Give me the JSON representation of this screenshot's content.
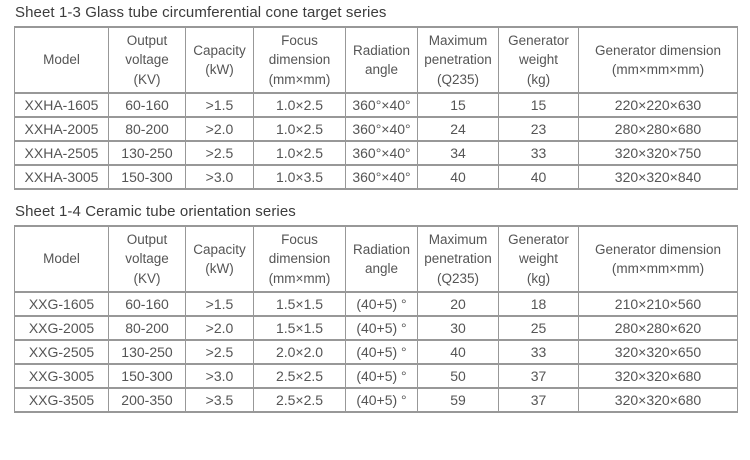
{
  "colors": {
    "border": "#989898",
    "text": "#555555",
    "title": "#3c3c3c",
    "background": "#ffffff"
  },
  "tables": [
    {
      "title": "Sheet 1-3 Glass tube circumferential cone target series",
      "column_headers": [
        [
          "Model"
        ],
        [
          "Output",
          "voltage",
          "(KV)"
        ],
        [
          "Capacity",
          "(kW)"
        ],
        [
          "Focus",
          "dimension",
          "(mm×mm)"
        ],
        [
          "Radiation",
          "angle"
        ],
        [
          "Maximum",
          "penetration",
          "(Q235)"
        ],
        [
          "Generator",
          "weight",
          "(kg)"
        ],
        [
          "Generator dimension",
          "(mm×mm×mm)"
        ]
      ],
      "rows": [
        [
          "XXHA-1605",
          "60-160",
          ">1.5",
          "1.0×2.5",
          "360°×40°",
          "15",
          "15",
          "220×220×630"
        ],
        [
          "XXHA-2005",
          "80-200",
          ">2.0",
          "1.0×2.5",
          "360°×40°",
          "24",
          "23",
          "280×280×680"
        ],
        [
          "XXHA-2505",
          "130-250",
          ">2.5",
          "1.0×2.5",
          "360°×40°",
          "34",
          "33",
          "320×320×750"
        ],
        [
          "XXHA-3005",
          "150-300",
          ">3.0",
          "1.0×3.5",
          "360°×40°",
          "40",
          "40",
          "320×320×840"
        ]
      ]
    },
    {
      "title": "Sheet 1-4 Ceramic tube orientation series",
      "column_headers": [
        [
          "Model"
        ],
        [
          "Output",
          "voltage",
          "(KV)"
        ],
        [
          "Capacity",
          "(kW)"
        ],
        [
          "Focus",
          "dimension",
          "(mm×mm)"
        ],
        [
          "Radiation",
          "angle"
        ],
        [
          "Maximum",
          "penetration",
          "(Q235)"
        ],
        [
          "Generator",
          "weight",
          "(kg)"
        ],
        [
          "Generator dimension",
          "(mm×mm×mm)"
        ]
      ],
      "rows": [
        [
          "XXG-1605",
          "60-160",
          ">1.5",
          "1.5×1.5",
          "(40+5) °",
          "20",
          "18",
          "210×210×560"
        ],
        [
          "XXG-2005",
          "80-200",
          ">2.0",
          "1.5×1.5",
          "(40+5) °",
          "30",
          "25",
          "280×280×620"
        ],
        [
          "XXG-2505",
          "130-250",
          ">2.5",
          "2.0×2.0",
          "(40+5) °",
          "40",
          "33",
          "320×320×650"
        ],
        [
          "XXG-3005",
          "150-300",
          ">3.0",
          "2.5×2.5",
          "(40+5) °",
          "50",
          "37",
          "320×320×680"
        ],
        [
          "XXG-3505",
          "200-350",
          ">3.5",
          "2.5×2.5",
          "(40+5) °",
          "59",
          "37",
          "320×320×680"
        ]
      ]
    }
  ]
}
